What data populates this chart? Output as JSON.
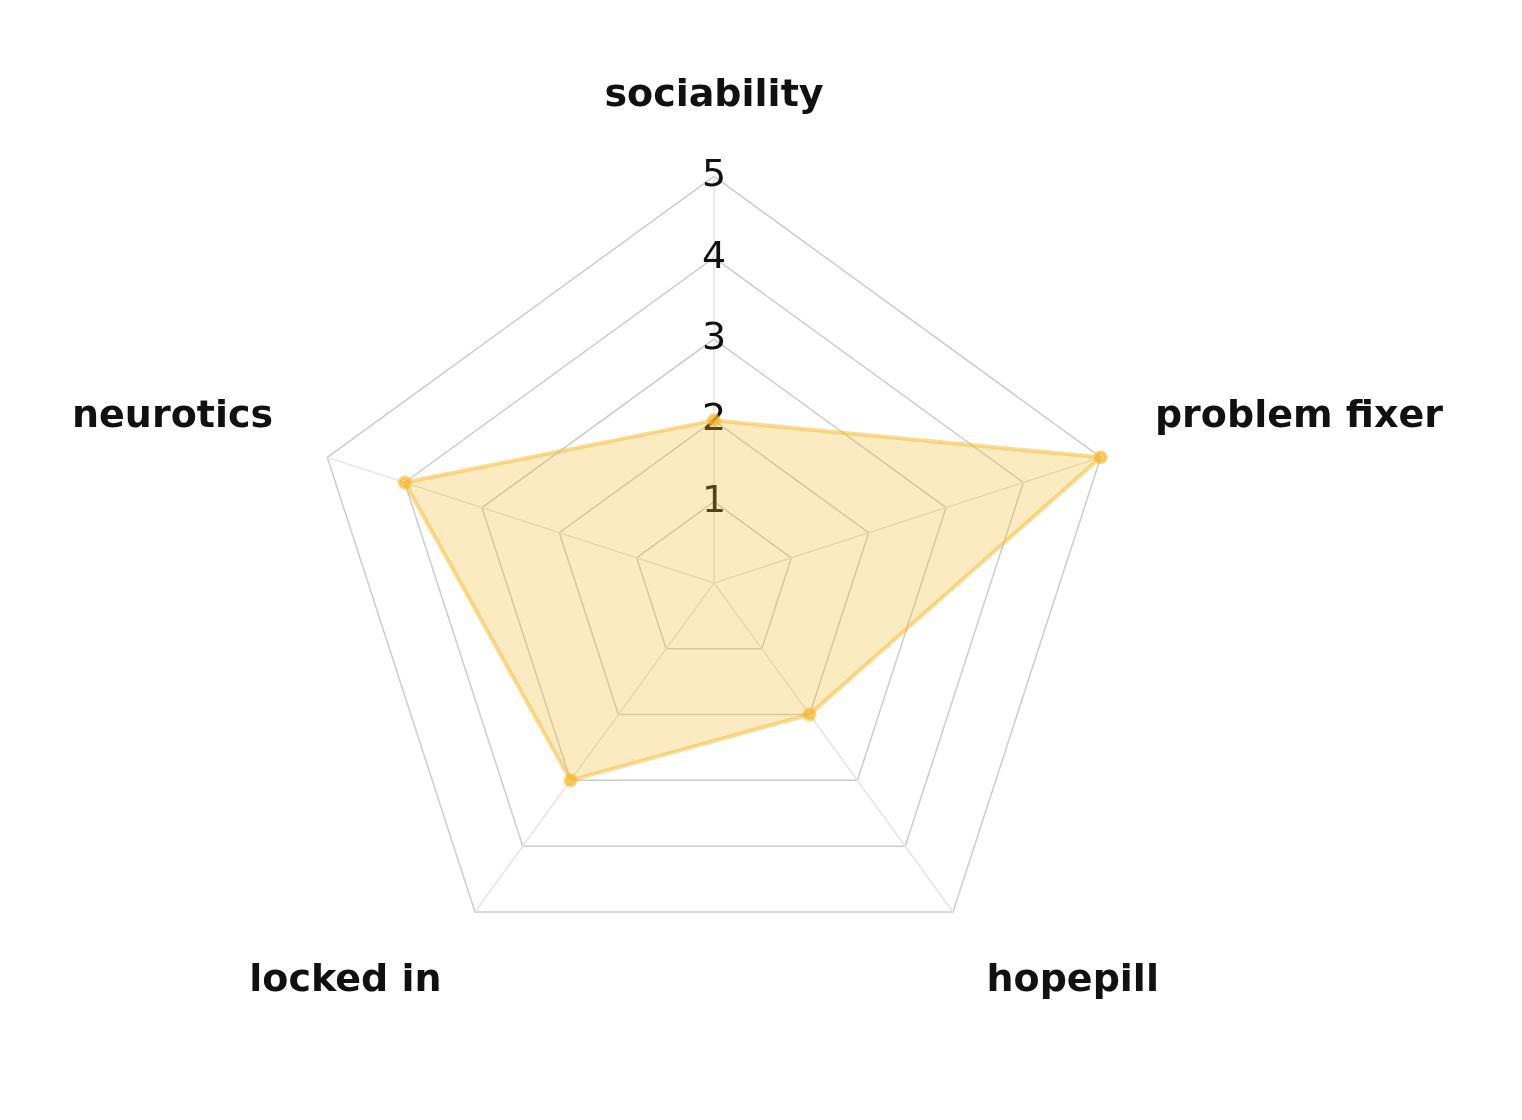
{
  "chart_data": {
    "type": "radar",
    "categories": [
      "sociability",
      "problem fixer",
      "hopepill",
      "locked in",
      "neurotics"
    ],
    "series": [
      {
        "color": "#f5b82e",
        "values": [
          2,
          5,
          2,
          3,
          4
        ]
      }
    ],
    "ylim": [
      0,
      5
    ],
    "yticks": [
      1,
      2,
      3,
      4,
      5
    ],
    "grid": true,
    "legend": false,
    "marker": "circle"
  }
}
